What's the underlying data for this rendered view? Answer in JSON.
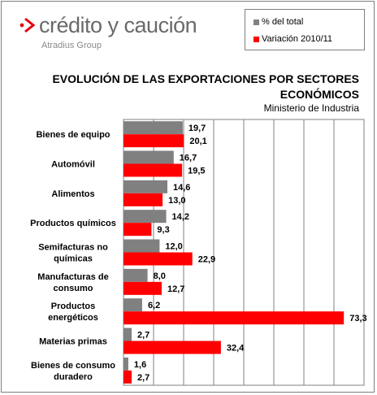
{
  "brand": {
    "name": "crédito y caución",
    "sub": "Atradius Group",
    "accent_color": "#e30613"
  },
  "legend": [
    {
      "name": "% del total",
      "color": "#808080"
    },
    {
      "name": "Variación 2010/11",
      "color": "#ff0000"
    }
  ],
  "chart_data": {
    "type": "bar",
    "orientation": "horizontal",
    "title": "EVOLUCIÓN DE LAS EXPORTACIONES POR SECTORES ECONÓMICOS",
    "subtitle": "Ministerio de Industria",
    "categories": [
      "Bienes de equipo",
      "Automóvil",
      "Alimentos",
      "Productos químicos",
      "Semifacturas no químicas",
      "Manufacturas de consumo",
      "Productos energéticos",
      "Materias primas",
      "Bienes de consumo duradero"
    ],
    "series": [
      {
        "name": "% del total",
        "color": "#808080",
        "values": [
          19.7,
          16.7,
          14.6,
          14.2,
          12.0,
          8.0,
          6.2,
          2.7,
          1.6
        ],
        "labels": [
          "19,7",
          "16,7",
          "14,6",
          "14,2",
          "12,0",
          "8,0",
          "6,2",
          "2,7",
          "1,6"
        ]
      },
      {
        "name": "Variación 2010/11",
        "color": "#ff0000",
        "values": [
          20.1,
          19.5,
          13.0,
          9.3,
          22.9,
          12.7,
          73.3,
          32.4,
          2.7
        ],
        "labels": [
          "20,1",
          "19,5",
          "13,0",
          "9,3",
          "22,9",
          "12,7",
          "73,3",
          "32,4",
          "2,7"
        ]
      }
    ],
    "xlim": [
      0,
      80
    ],
    "grid": true,
    "legend_position": "top-right"
  }
}
